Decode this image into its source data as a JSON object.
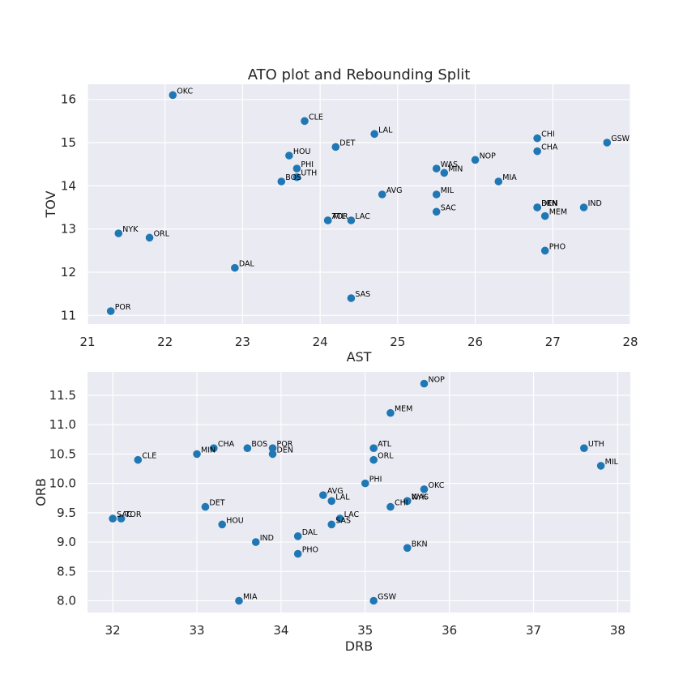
{
  "chart_data": [
    {
      "type": "scatter",
      "title": "ATO plot and Rebounding Split",
      "xlabel": "AST",
      "ylabel": "TOV",
      "xlim": [
        21,
        28
      ],
      "ylim": [
        10.8,
        16.35
      ],
      "xticks": [
        21,
        22,
        23,
        24,
        25,
        26,
        27,
        28
      ],
      "yticks": [
        11,
        12,
        13,
        14,
        15,
        16
      ],
      "grid": true,
      "marker_color": "#1f77b4",
      "points": [
        {
          "label": "OKC",
          "x": 22.1,
          "y": 16.1
        },
        {
          "label": "CLE",
          "x": 23.8,
          "y": 15.5
        },
        {
          "label": "LAL",
          "x": 24.7,
          "y": 15.2
        },
        {
          "label": "CHI",
          "x": 26.8,
          "y": 15.1
        },
        {
          "label": "GSW",
          "x": 27.7,
          "y": 15.0
        },
        {
          "label": "DET",
          "x": 24.2,
          "y": 14.9
        },
        {
          "label": "CHA",
          "x": 26.8,
          "y": 14.8
        },
        {
          "label": "HOU",
          "x": 23.6,
          "y": 14.7
        },
        {
          "label": "NOP",
          "x": 26.0,
          "y": 14.6
        },
        {
          "label": "PHI",
          "x": 23.7,
          "y": 14.4
        },
        {
          "label": "WAS",
          "x": 25.5,
          "y": 14.4
        },
        {
          "label": "MIN",
          "x": 25.6,
          "y": 14.3
        },
        {
          "label": "UTH",
          "x": 23.7,
          "y": 14.2
        },
        {
          "label": "BOS",
          "x": 23.5,
          "y": 14.1
        },
        {
          "label": "MIA",
          "x": 26.3,
          "y": 14.1
        },
        {
          "label": "AVG",
          "x": 24.8,
          "y": 13.8
        },
        {
          "label": "MIL",
          "x": 25.5,
          "y": 13.8
        },
        {
          "label": "BKN",
          "x": 26.8,
          "y": 13.5
        },
        {
          "label": "DEN",
          "x": 26.8,
          "y": 13.5
        },
        {
          "label": "IND",
          "x": 27.4,
          "y": 13.5
        },
        {
          "label": "SAC",
          "x": 25.5,
          "y": 13.4
        },
        {
          "label": "MEM",
          "x": 26.9,
          "y": 13.3
        },
        {
          "label": "ATL",
          "x": 24.1,
          "y": 13.2
        },
        {
          "label": "TOR",
          "x": 24.1,
          "y": 13.2
        },
        {
          "label": "LAC",
          "x": 24.4,
          "y": 13.2
        },
        {
          "label": "NYK",
          "x": 21.4,
          "y": 12.9
        },
        {
          "label": "ORL",
          "x": 21.8,
          "y": 12.8
        },
        {
          "label": "PHO",
          "x": 26.9,
          "y": 12.5
        },
        {
          "label": "DAL",
          "x": 22.9,
          "y": 12.1
        },
        {
          "label": "SAS",
          "x": 24.4,
          "y": 11.4
        },
        {
          "label": "POR",
          "x": 21.3,
          "y": 11.1
        }
      ]
    },
    {
      "type": "scatter",
      "title": "",
      "xlabel": "DRB",
      "ylabel": "ORB",
      "xlim": [
        31.7,
        38.15
      ],
      "ylim": [
        7.8,
        11.9
      ],
      "xticks": [
        32,
        33,
        34,
        35,
        36,
        37,
        38
      ],
      "yticks": [
        8.0,
        8.5,
        9.0,
        9.5,
        10.0,
        10.5,
        11.0,
        11.5
      ],
      "ytick_labels": [
        "8.0",
        "8.5",
        "9.0",
        "9.5",
        "10.0",
        "10.5",
        "11.0",
        "11.5"
      ],
      "grid": true,
      "marker_color": "#1f77b4",
      "points": [
        {
          "label": "NOP",
          "x": 35.7,
          "y": 11.7
        },
        {
          "label": "MEM",
          "x": 35.3,
          "y": 11.2
        },
        {
          "label": "UTH",
          "x": 37.6,
          "y": 10.6
        },
        {
          "label": "CHA",
          "x": 33.2,
          "y": 10.6
        },
        {
          "label": "BOS",
          "x": 33.6,
          "y": 10.6
        },
        {
          "label": "POR",
          "x": 33.9,
          "y": 10.6
        },
        {
          "label": "ATL",
          "x": 35.1,
          "y": 10.6
        },
        {
          "label": "MIN",
          "x": 33.0,
          "y": 10.5
        },
        {
          "label": "DEN",
          "x": 33.9,
          "y": 10.5
        },
        {
          "label": "CLE",
          "x": 32.3,
          "y": 10.4
        },
        {
          "label": "ORL",
          "x": 35.1,
          "y": 10.4
        },
        {
          "label": "MIL",
          "x": 37.8,
          "y": 10.3
        },
        {
          "label": "PHI",
          "x": 35.0,
          "y": 10.0
        },
        {
          "label": "OKC",
          "x": 35.7,
          "y": 9.9
        },
        {
          "label": "AVG",
          "x": 34.5,
          "y": 9.8
        },
        {
          "label": "LAL",
          "x": 34.6,
          "y": 9.7
        },
        {
          "label": "NYK",
          "x": 35.5,
          "y": 9.7
        },
        {
          "label": "WAS",
          "x": 35.5,
          "y": 9.7
        },
        {
          "label": "DET",
          "x": 33.1,
          "y": 9.6
        },
        {
          "label": "CHI",
          "x": 35.3,
          "y": 9.6
        },
        {
          "label": "SAC",
          "x": 32.0,
          "y": 9.4
        },
        {
          "label": "TOR",
          "x": 32.1,
          "y": 9.4
        },
        {
          "label": "LAC",
          "x": 34.7,
          "y": 9.4
        },
        {
          "label": "SAS",
          "x": 34.6,
          "y": 9.3
        },
        {
          "label": "HOU",
          "x": 33.3,
          "y": 9.3
        },
        {
          "label": "DAL",
          "x": 34.2,
          "y": 9.1
        },
        {
          "label": "IND",
          "x": 33.7,
          "y": 9.0
        },
        {
          "label": "BKN",
          "x": 35.5,
          "y": 8.9
        },
        {
          "label": "PHO",
          "x": 34.2,
          "y": 8.8
        },
        {
          "label": "MIA",
          "x": 33.5,
          "y": 8.0
        },
        {
          "label": "GSW",
          "x": 35.1,
          "y": 8.0
        }
      ]
    }
  ]
}
